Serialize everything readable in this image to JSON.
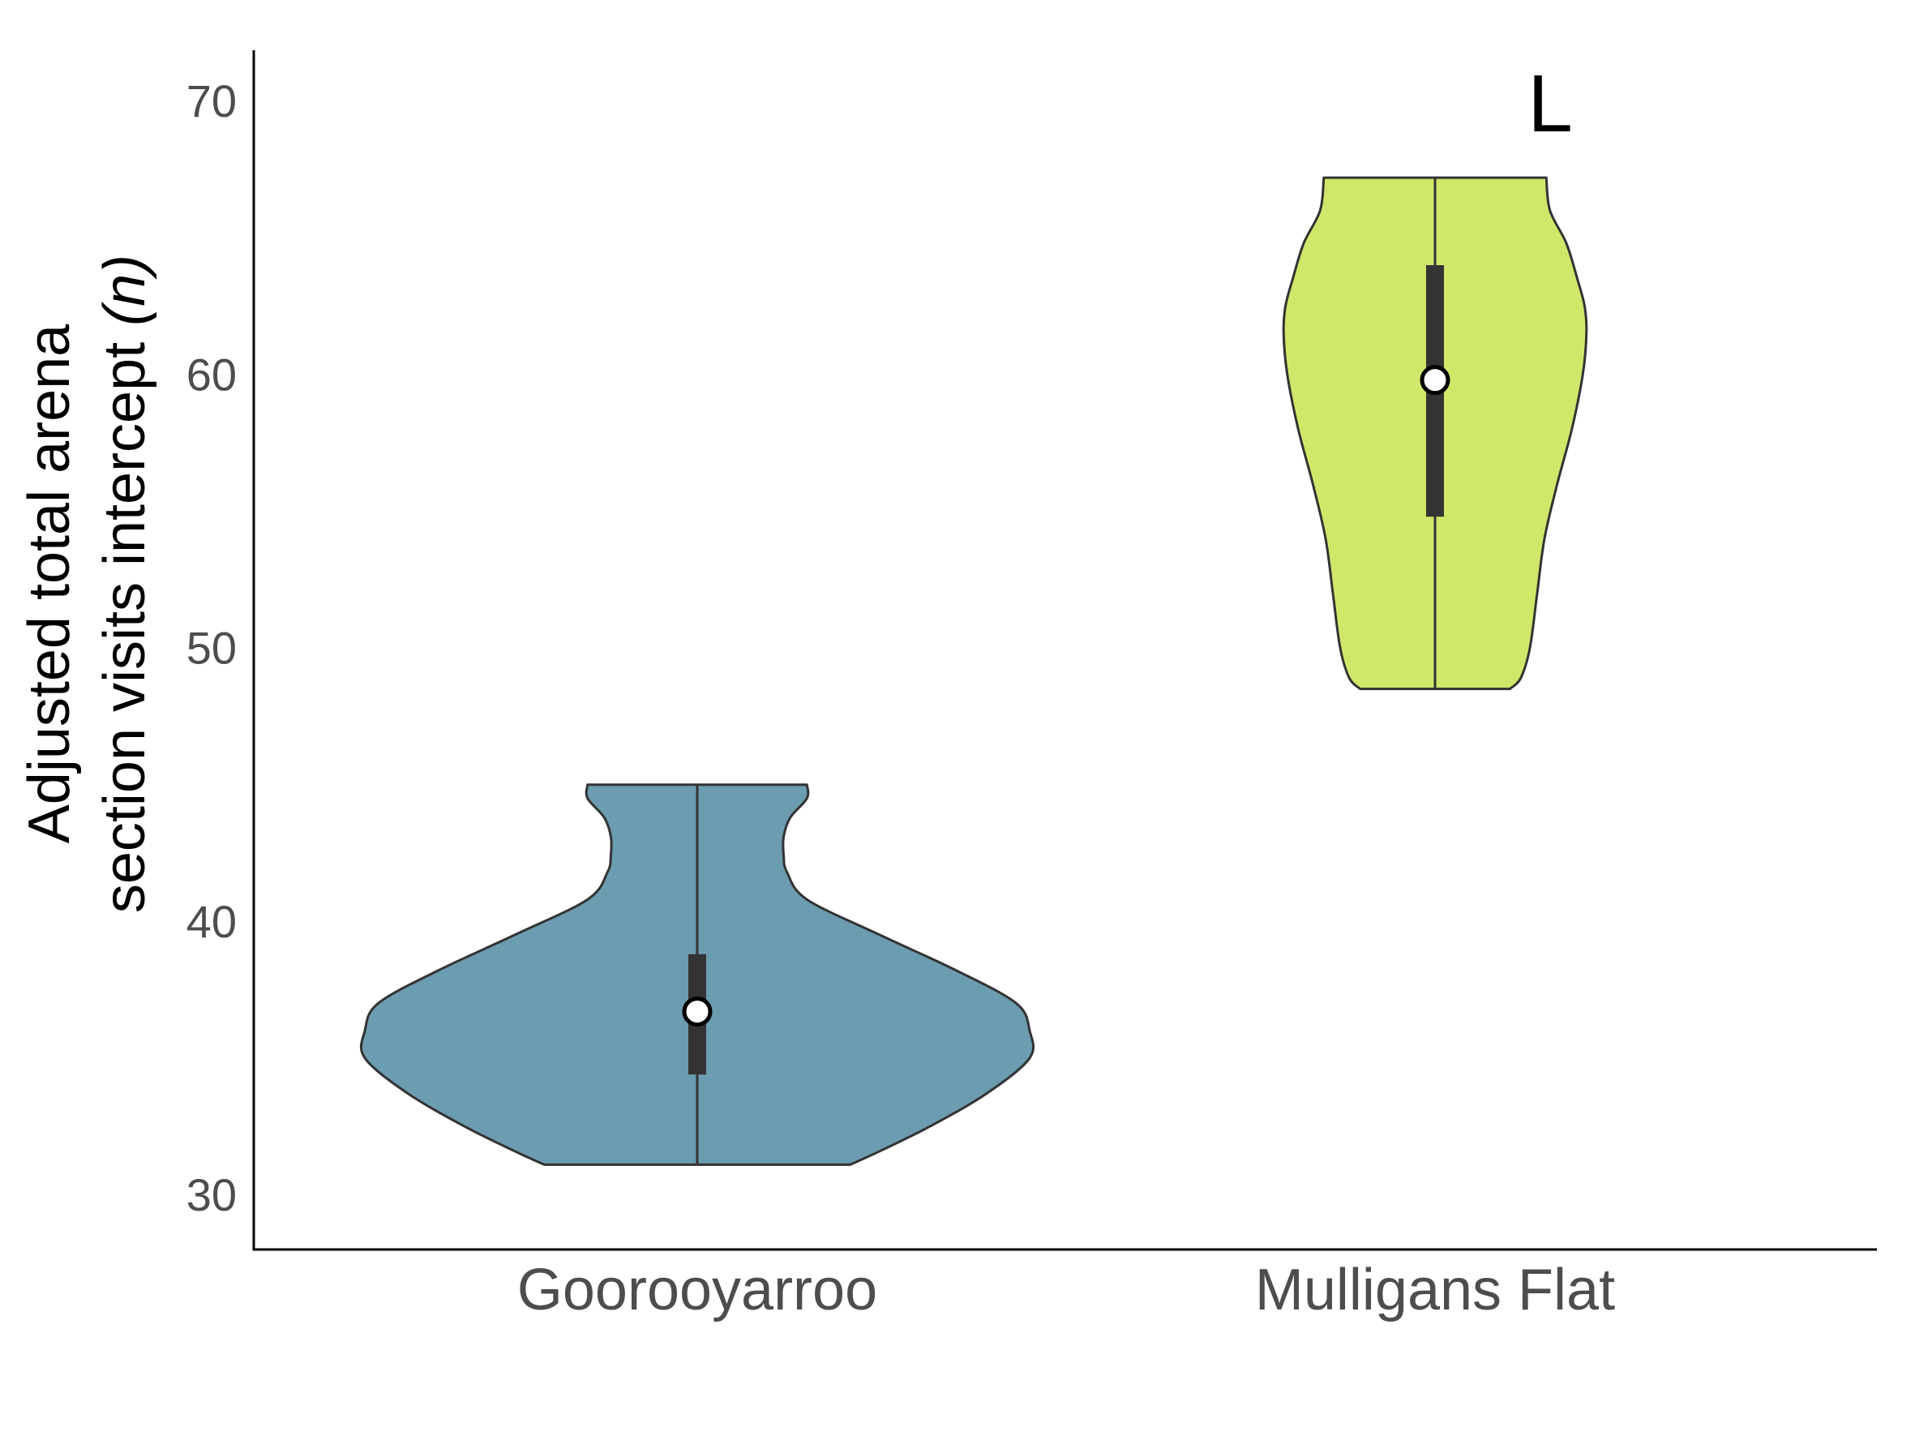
{
  "chart_data": {
    "type": "violin",
    "title": "",
    "xlabel": "",
    "ylabel_lines": [
      "Adjusted total arena",
      "section visits intercept ",
      "(n)"
    ],
    "ylim": [
      27.2,
      72.1
    ],
    "yticks": [
      30,
      40,
      50,
      60,
      70
    ],
    "categories": [
      "Gooroo yarroo",
      "Mulligans Flat"
    ],
    "annotation": "L",
    "grid": false,
    "legend": "none",
    "series": [
      {
        "category": "Goorooyarroo",
        "color": "#6b9cb0",
        "min": 31.1,
        "max": 45.0,
        "q1": 34.4,
        "median": 36.7,
        "q3": 38.8,
        "density": [
          [
            31.1,
            0.46
          ],
          [
            31.6,
            0.55
          ],
          [
            32.5,
            0.7
          ],
          [
            33.7,
            0.87
          ],
          [
            35.0,
            1.0
          ],
          [
            36.0,
            1.0
          ],
          [
            37.0,
            0.96
          ],
          [
            38.2,
            0.78
          ],
          [
            39.5,
            0.55
          ],
          [
            40.8,
            0.33
          ],
          [
            41.8,
            0.27
          ],
          [
            42.4,
            0.26
          ],
          [
            43.1,
            0.26
          ],
          [
            43.8,
            0.28
          ],
          [
            44.5,
            0.33
          ],
          [
            45.0,
            0.33
          ]
        ]
      },
      {
        "category": "Mulligans Flat",
        "color": "#cfe86a",
        "min": 48.5,
        "max": 67.2,
        "q1": 54.8,
        "median": 59.8,
        "q3": 64.0,
        "density": [
          [
            48.5,
            0.41
          ],
          [
            48.9,
            0.47
          ],
          [
            50.0,
            0.52
          ],
          [
            52.0,
            0.56
          ],
          [
            54.0,
            0.6
          ],
          [
            56.0,
            0.67
          ],
          [
            58.0,
            0.75
          ],
          [
            60.0,
            0.81
          ],
          [
            61.5,
            0.83
          ],
          [
            62.5,
            0.82
          ],
          [
            63.5,
            0.78
          ],
          [
            64.8,
            0.72
          ],
          [
            66.0,
            0.63
          ],
          [
            67.2,
            0.61
          ]
        ]
      }
    ]
  }
}
